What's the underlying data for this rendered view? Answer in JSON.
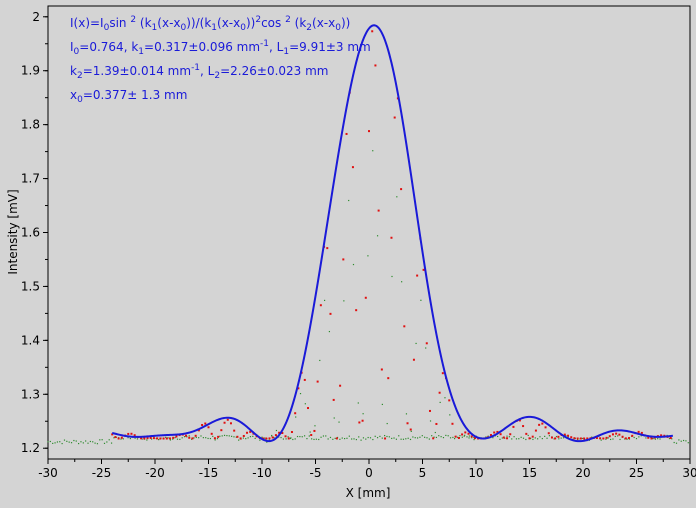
{
  "chart_data": {
    "type": "line",
    "xlabel": "X [mm]",
    "ylabel": "Intensity [mV]",
    "xlim": [
      -30,
      30
    ],
    "ylim": [
      1.18,
      2.02
    ],
    "x_ticks": [
      -30,
      -25,
      -20,
      -15,
      -10,
      -5,
      0,
      5,
      10,
      15,
      20,
      25,
      30
    ],
    "y_ticks": [
      1.2,
      1.3,
      1.4,
      1.5,
      1.6,
      1.7,
      1.8,
      1.9,
      2
    ],
    "grid": false,
    "annotations": {
      "formula_line1": "I(x)=I0sin 2 (k1(x-x0))/(k1(x-x0))2cos 2 (k2(x-x0))",
      "params_line2": "I0=0.764,  k1=0.317±0.096 mm-1,   L1=9.91±3 mm",
      "params_line3": "k2=1.39±0.014 mm-1,   L2=2.26±0.023 mm",
      "params_line4": "x0=0.377±  1.3 mm"
    },
    "fit_params": {
      "I0": 0.764,
      "k1": 0.317,
      "k2": 1.39,
      "x0": 0.377,
      "offset": 1.218,
      "x_range": [
        -24,
        28.5
      ]
    },
    "series": [
      {
        "color": "#1a1ad8",
        "style": "line",
        "description_values": [
          [
            -24,
            1.228
          ],
          [
            -20,
            1.216
          ],
          [
            -14,
            1.25
          ],
          [
            -10,
            1.216
          ],
          [
            -5,
            1.53
          ],
          [
            0,
            1.97
          ],
          [
            5,
            1.56
          ],
          [
            10,
            1.216
          ],
          [
            14.5,
            1.25
          ],
          [
            20,
            1.216
          ],
          [
            25,
            1.228
          ],
          [
            28.5,
            1.218
          ]
        ]
      },
      {
        "color": "#e01010",
        "style": "dots",
        "x_range": [
          -24,
          28.5
        ]
      },
      {
        "color": "#2e8b2e",
        "style": "dots",
        "x_range": [
          -30,
          30
        ],
        "baseline": 1.21
      }
    ]
  }
}
